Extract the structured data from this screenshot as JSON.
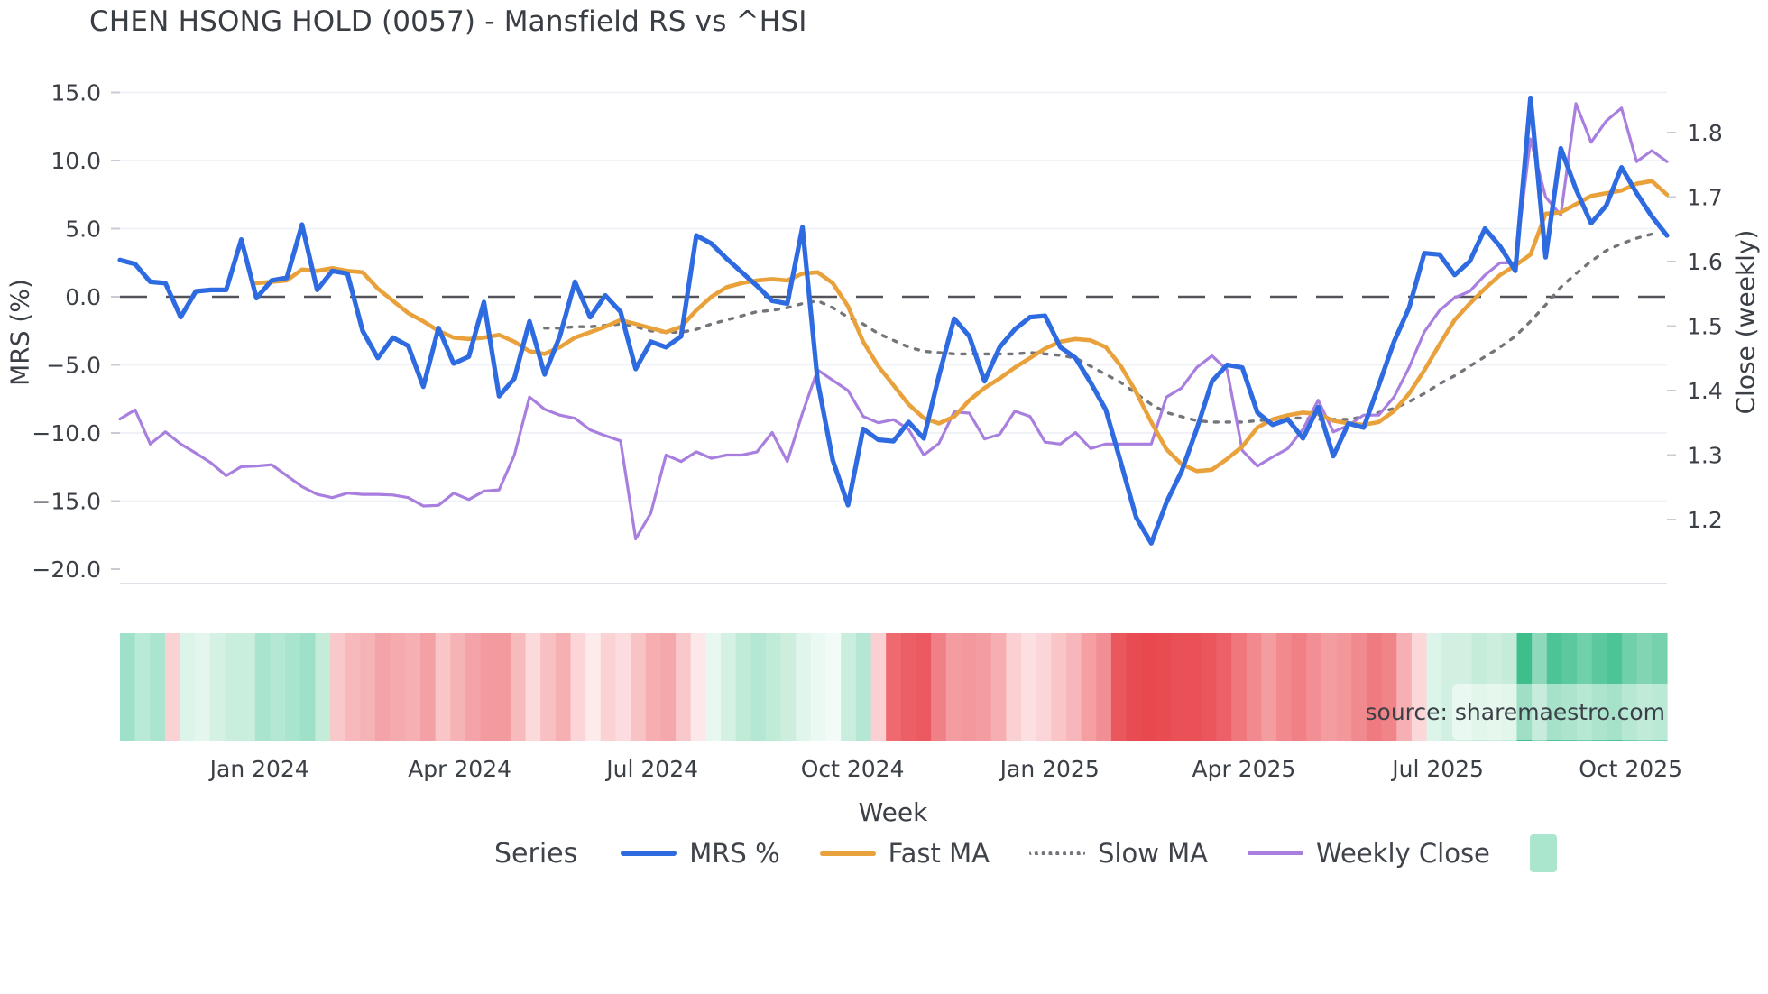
{
  "title": "CHEN HSONG HOLD (0057) - Mansfield RS vs ^HSI",
  "watermark": "source: sharemaestro.com",
  "left_axis": {
    "label": "MRS (%)",
    "ticks": [
      {
        "v": 15,
        "label": "15.0"
      },
      {
        "v": 10,
        "label": "10.0"
      },
      {
        "v": 5,
        "label": "5.0"
      },
      {
        "v": 0,
        "label": "0.0"
      },
      {
        "v": -5,
        "label": "−5.0"
      },
      {
        "v": -10,
        "label": "−10.0"
      },
      {
        "v": -15,
        "label": "−15.0"
      },
      {
        "v": -20,
        "label": "−20.0"
      }
    ]
  },
  "right_axis": {
    "label": "Close (weekly)",
    "ticks": [
      {
        "v": 1.8,
        "label": "1.8"
      },
      {
        "v": 1.7,
        "label": "1.7"
      },
      {
        "v": 1.6,
        "label": "1.6"
      },
      {
        "v": 1.5,
        "label": "1.5"
      },
      {
        "v": 1.4,
        "label": "1.4"
      },
      {
        "v": 1.3,
        "label": "1.3"
      },
      {
        "v": 1.2,
        "label": "1.2"
      }
    ]
  },
  "x_axis": {
    "label": "Week",
    "ticks": [
      {
        "week": 9.2,
        "label": "Jan 2024"
      },
      {
        "week": 22.4,
        "label": "Apr 2024"
      },
      {
        "week": 35.1,
        "label": "Jul 2024"
      },
      {
        "week": 48.3,
        "label": "Oct 2024"
      },
      {
        "week": 61.3,
        "label": "Jan 2025"
      },
      {
        "week": 74.1,
        "label": "Apr 2025"
      },
      {
        "week": 86.9,
        "label": "Jul 2025"
      },
      {
        "week": 99.6,
        "label": "Oct 2025"
      }
    ]
  },
  "legend": {
    "title": "Series",
    "items": [
      {
        "label": "MRS %",
        "color": "#2f6be0",
        "style": "solid",
        "thickness": 6
      },
      {
        "label": "Fast MA",
        "color": "#e9a23b",
        "style": "solid",
        "thickness": 5
      },
      {
        "label": "Slow MA",
        "color": "#74757a",
        "style": "dotted",
        "thickness": 4
      },
      {
        "label": "Weekly Close",
        "color": "#a87fde",
        "style": "solid",
        "thickness": 4
      },
      {
        "label": "",
        "color": "#a9e6cd",
        "style": "patch",
        "thickness": 0
      }
    ]
  },
  "chart_data": {
    "type": "line",
    "x_unit": "week",
    "n_weeks": 103,
    "x_range_weeks": [
      "Nov 2023",
      "Nov 2025"
    ],
    "left_ylim": [
      -20,
      15
    ],
    "right_ylim": [
      1.2,
      1.8
    ],
    "zero_line": 0,
    "grid": "horizontal",
    "series": [
      {
        "name": "MRS %",
        "axis": "left",
        "color": "#2f6be0",
        "width": 5.2,
        "dash": null,
        "start_week": 0,
        "values": [
          2.7,
          2.4,
          1.1,
          1.0,
          -1.5,
          0.4,
          0.5,
          0.5,
          4.2,
          -0.1,
          1.2,
          1.4,
          5.3,
          0.5,
          1.9,
          1.7,
          -2.5,
          -4.5,
          -3.0,
          -3.6,
          -6.6,
          -2.3,
          -4.9,
          -4.4,
          -0.4,
          -7.3,
          -6.0,
          -1.8,
          -5.7,
          -2.9,
          1.1,
          -1.5,
          0.1,
          -1.1,
          -5.3,
          -3.3,
          -3.7,
          -2.9,
          4.5,
          3.9,
          2.8,
          1.8,
          0.8,
          -0.3,
          -0.5,
          5.1,
          -6.2,
          -12.0,
          -15.3,
          -9.7,
          -10.5,
          -10.6,
          -9.2,
          -10.4,
          -5.8,
          -1.6,
          -2.9,
          -6.2,
          -3.7,
          -2.4,
          -1.5,
          -1.4,
          -3.7,
          -4.5,
          -6.3,
          -8.3,
          -12.2,
          -16.2,
          -18.1,
          -15.1,
          -12.8,
          -9.7,
          -6.2,
          -5.0,
          -5.2,
          -8.5,
          -9.4,
          -9.0,
          -10.4,
          -8.1,
          -11.7,
          -9.3,
          -9.6,
          -6.5,
          -3.3,
          -0.8,
          3.2,
          3.1,
          1.6,
          2.6,
          5.0,
          3.7,
          1.9,
          14.6,
          2.9,
          10.9,
          7.9,
          5.4,
          6.7,
          9.5,
          7.6,
          5.9,
          4.5
        ]
      },
      {
        "name": "Fast MA",
        "axis": "left",
        "color": "#e9a23b",
        "width": 4.6,
        "dash": null,
        "start_week": 9,
        "values": [
          1.0,
          1.1,
          1.2,
          2.0,
          1.9,
          2.1,
          1.9,
          1.8,
          0.6,
          -0.3,
          -1.2,
          -1.8,
          -2.5,
          -3.0,
          -3.1,
          -3.0,
          -2.8,
          -3.3,
          -4.0,
          -4.2,
          -3.7,
          -3.0,
          -2.6,
          -2.2,
          -1.7,
          -2.0,
          -2.3,
          -2.6,
          -2.2,
          -1.0,
          0.0,
          0.7,
          1.0,
          1.2,
          1.3,
          1.2,
          1.7,
          1.8,
          1.0,
          -0.7,
          -3.3,
          -5.1,
          -6.5,
          -7.9,
          -8.9,
          -9.3,
          -8.8,
          -7.6,
          -6.7,
          -6.0,
          -5.2,
          -4.5,
          -3.8,
          -3.3,
          -3.1,
          -3.2,
          -3.7,
          -5.1,
          -7.0,
          -9.2,
          -11.2,
          -12.3,
          -12.8,
          -12.7,
          -11.9,
          -11.0,
          -9.6,
          -9.0,
          -8.7,
          -8.5,
          -8.6,
          -9.1,
          -9.3,
          -9.4,
          -9.2,
          -8.4,
          -7.1,
          -5.4,
          -3.5,
          -1.7,
          -0.5,
          0.6,
          1.6,
          2.3,
          3.1,
          6.1,
          6.2,
          6.8,
          7.4,
          7.6,
          7.8,
          8.3,
          8.5,
          7.5
        ]
      },
      {
        "name": "Slow MA",
        "axis": "left",
        "color": "#74757a",
        "width": 3.4,
        "dash": "4 9",
        "start_week": 28,
        "values": [
          -2.3,
          -2.3,
          -2.2,
          -2.2,
          -2.1,
          -2.0,
          -2.2,
          -2.5,
          -2.6,
          -2.6,
          -2.4,
          -2.0,
          -1.7,
          -1.4,
          -1.1,
          -1.0,
          -0.8,
          -0.5,
          -0.3,
          -0.8,
          -1.5,
          -2.0,
          -2.7,
          -3.2,
          -3.7,
          -4.0,
          -4.1,
          -4.2,
          -4.2,
          -4.2,
          -4.2,
          -4.2,
          -4.1,
          -4.2,
          -4.3,
          -4.5,
          -5.1,
          -5.7,
          -6.3,
          -7.1,
          -7.9,
          -8.5,
          -8.8,
          -9.1,
          -9.2,
          -9.2,
          -9.2,
          -9.1,
          -9.0,
          -8.9,
          -8.9,
          -9.0,
          -9.0,
          -9.0,
          -8.8,
          -8.5,
          -8.2,
          -7.7,
          -7.1,
          -6.4,
          -5.8,
          -5.1,
          -4.4,
          -3.7,
          -2.9,
          -1.8,
          -0.6,
          0.7,
          1.7,
          2.6,
          3.4,
          3.9,
          4.3,
          4.6
        ]
      },
      {
        "name": "Weekly Close",
        "axis": "right",
        "color": "#a87fde",
        "width": 3.2,
        "dash": null,
        "start_week": 0,
        "values": [
          1.356,
          1.37,
          1.317,
          1.336,
          1.317,
          1.303,
          1.288,
          1.268,
          1.282,
          1.283,
          1.285,
          1.268,
          1.251,
          1.239,
          1.234,
          1.241,
          1.239,
          1.239,
          1.238,
          1.234,
          1.221,
          1.222,
          1.241,
          1.231,
          1.244,
          1.246,
          1.3,
          1.39,
          1.371,
          1.362,
          1.357,
          1.339,
          1.33,
          1.322,
          1.17,
          1.21,
          1.3,
          1.29,
          1.305,
          1.295,
          1.3,
          1.3,
          1.305,
          1.335,
          1.29,
          1.365,
          1.432,
          1.416,
          1.4,
          1.36,
          1.35,
          1.355,
          1.34,
          1.3,
          1.318,
          1.367,
          1.365,
          1.325,
          1.332,
          1.368,
          1.36,
          1.32,
          1.317,
          1.335,
          1.31,
          1.317,
          1.317,
          1.317,
          1.317,
          1.39,
          1.404,
          1.436,
          1.454,
          1.432,
          1.307,
          1.283,
          1.297,
          1.31,
          1.34,
          1.385,
          1.336,
          1.346,
          1.362,
          1.362,
          1.39,
          1.436,
          1.491,
          1.524,
          1.544,
          1.554,
          1.579,
          1.598,
          1.598,
          1.79,
          1.7,
          1.672,
          1.845,
          1.785,
          1.818,
          1.838,
          1.755,
          1.772,
          1.755
        ]
      }
    ],
    "heatmap_strip": {
      "description": "weekly relative-strength color band below plot",
      "colors": [
        "#9fe0c8",
        "#b9ead8",
        "#abe4cf",
        "#fbd2d4",
        "#ddf4ea",
        "#e4f6ee",
        "#d5f1e4",
        "#c9eedd",
        "#c9eedd",
        "#a9e4cf",
        "#b4e7d4",
        "#a9e4cf",
        "#9fe0c8",
        "#c4ecd9",
        "#f9c8ca",
        "#f7b9bc",
        "#f6b3b6",
        "#f4a4a8",
        "#f5abae",
        "#f6b0b3",
        "#f4a1a5",
        "#f9c5c7",
        "#f6b3b6",
        "#f4a4a8",
        "#f29a9e",
        "#f29a9e",
        "#f7babd",
        "#fcdadc",
        "#f8c0c3",
        "#f6b0b3",
        "#fbd5d7",
        "#fdeaeb",
        "#fbd2d4",
        "#fcdcde",
        "#f8c3c5",
        "#f6aeb1",
        "#f5a8ac",
        "#f9c8ca",
        "#fde8e9",
        "#e8f8f1",
        "#d5f1e4",
        "#c0ebd7",
        "#b4e7d4",
        "#c0ebd7",
        "#cdeedd",
        "#e0f5ec",
        "#ebf9f3",
        "#f2fbf7",
        "#c9eedd",
        "#b4e7d4",
        "#fbd0d2",
        "#ee6a6f",
        "#ec5f65",
        "#ea5a60",
        "#f08085",
        "#f49da1",
        "#f3989c",
        "#f49da1",
        "#f6aeb1",
        "#fbd0d2",
        "#fcdfe0",
        "#fbd5d7",
        "#f9c5c7",
        "#f7b6b9",
        "#f59fa3",
        "#f28f94",
        "#ea575d",
        "#e84c52",
        "#e8484e",
        "#e84c52",
        "#ea5157",
        "#ea5157",
        "#eb565c",
        "#ec6167",
        "#f0777c",
        "#f2898e",
        "#f49da1",
        "#f2898e",
        "#f08085",
        "#f28f94",
        "#f49da1",
        "#f3979b",
        "#f18a8f",
        "#ef7a7f",
        "#f18489",
        "#f6b0b3",
        "#fbd7d9",
        "#ddf4ea",
        "#d2f0e2",
        "#d2f0e2",
        "#c4ecd9",
        "#cdeedd",
        "#c4ecd9",
        "#3dbe8b",
        "#8ed9bb",
        "#4cc495",
        "#5bc99d",
        "#6fd0a9",
        "#5bc99d",
        "#4cc495",
        "#6fd0a9",
        "#82d5b3",
        "#75d2ac"
      ]
    },
    "style": {
      "zero_line_color": "#53545a",
      "grid_color": "#eef1f6",
      "spine_color": "#dfe2e8",
      "tick_color": "#c9ccd3",
      "watermark_color": "#767f8b"
    }
  }
}
